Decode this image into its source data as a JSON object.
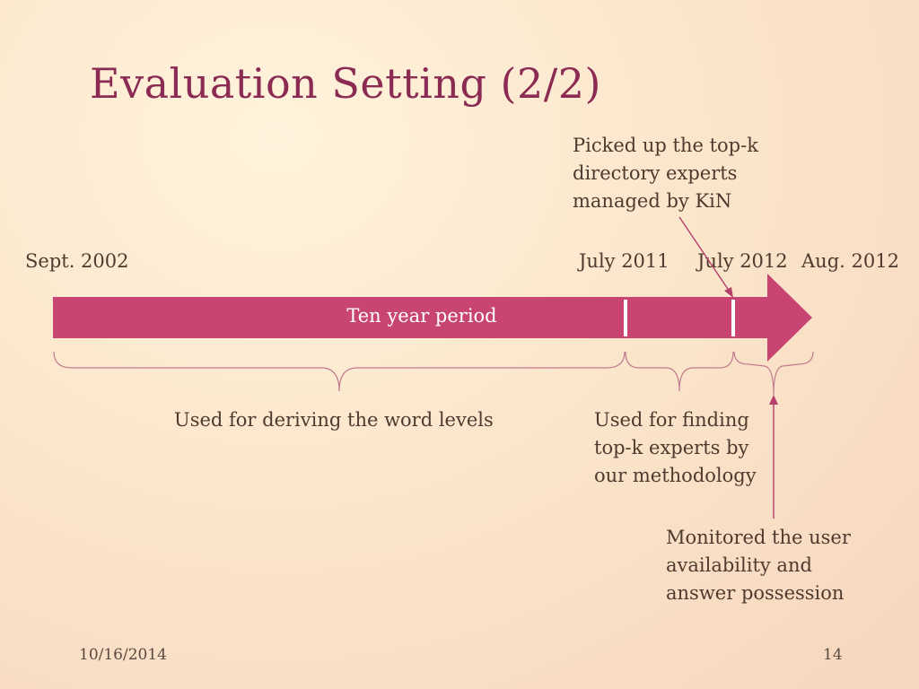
{
  "slide": {
    "title": "Evaluation Setting (2/2)",
    "date": "10/16/2014",
    "page_number": "14"
  },
  "timeline": {
    "period_label": "Ten year period",
    "dates": {
      "start": "Sept. 2002",
      "mid1": "July 2011",
      "mid2": "July 2012",
      "end": "Aug. 2012"
    },
    "arrow_color": "#c74473",
    "annotation_color": "#b43f6b"
  },
  "notes": {
    "top_note": [
      "Picked up the top-k",
      "directory experts",
      "managed by KiN"
    ],
    "word_levels": "Used for deriving the word levels",
    "finding": [
      "Used for finding",
      "top-k experts by",
      "our methodology"
    ],
    "monitored": [
      "Monitored the user",
      "availability and",
      "answer possession"
    ]
  }
}
